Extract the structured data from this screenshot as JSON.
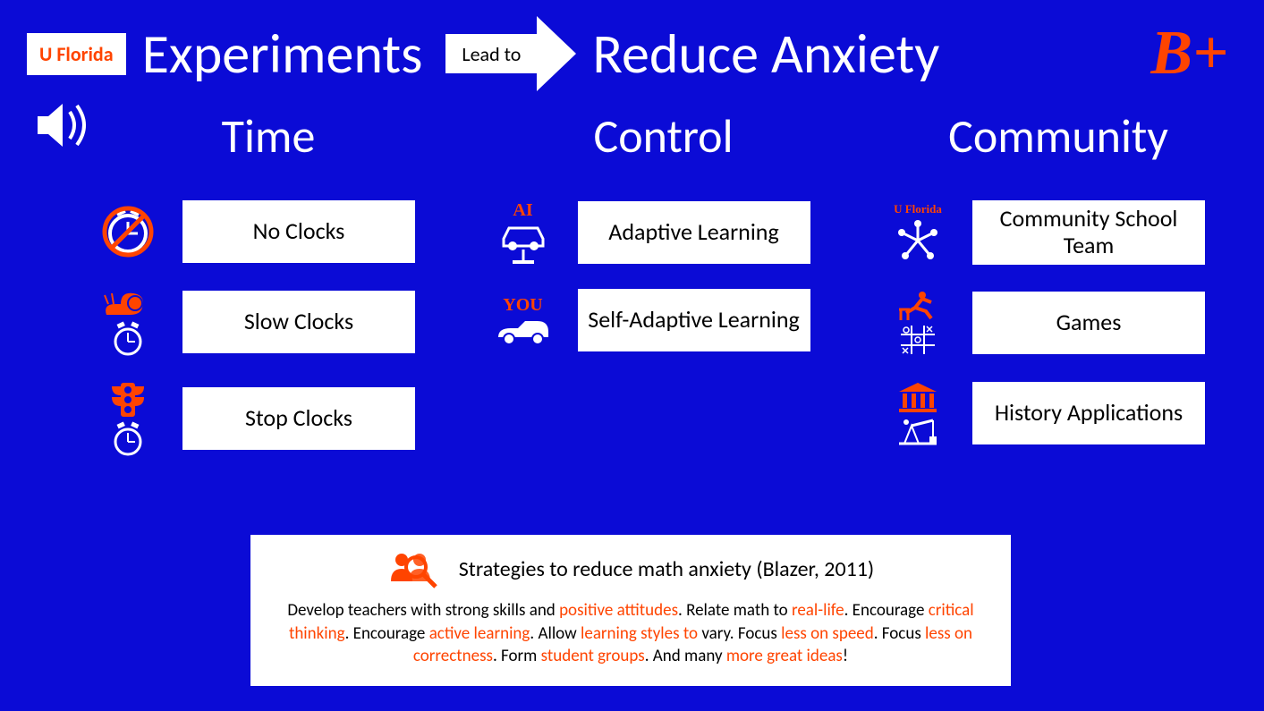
{
  "colors": {
    "background": "#0b0bd6",
    "accent": "#ff4400",
    "white": "#ffffff",
    "black": "#000000"
  },
  "header": {
    "badge": "U Florida",
    "title_left": "Experiments",
    "arrow_label": "Lead to",
    "title_right": "Reduce Anxiety",
    "grade": "B+"
  },
  "columns": {
    "time": {
      "title": "Time",
      "items": [
        {
          "label": "No Clocks"
        },
        {
          "label": "Slow Clocks"
        },
        {
          "label": "Stop Clocks"
        }
      ]
    },
    "control": {
      "title": "Control",
      "items": [
        {
          "cap": "AI",
          "label": "Adaptive Learning"
        },
        {
          "cap": "YOU",
          "label": "Self-Adaptive Learning"
        }
      ]
    },
    "community": {
      "title": "Community",
      "items": [
        {
          "cap": "U Florida",
          "label": "Community School Team"
        },
        {
          "label": "Games"
        },
        {
          "label": "History Applications"
        }
      ]
    }
  },
  "footer": {
    "title": "Strategies to reduce math anxiety (Blazer, 2011)",
    "body_parts": [
      {
        "t": "Develop teachers with strong skills and "
      },
      {
        "t": "positive attitudes",
        "hl": true
      },
      {
        "t": ". Relate math to "
      },
      {
        "t": "real-life",
        "hl": true
      },
      {
        "t": ". Encourage "
      },
      {
        "t": "critical thinking",
        "hl": true
      },
      {
        "t": ". Encourage "
      },
      {
        "t": "active learning",
        "hl": true
      },
      {
        "t": ". Allow "
      },
      {
        "t": "learning styles to",
        "hl": true
      },
      {
        "t": " vary. Focus "
      },
      {
        "t": "less on speed",
        "hl": true
      },
      {
        "t": ". Focus "
      },
      {
        "t": "less on correctness",
        "hl": true
      },
      {
        "t": ". Form "
      },
      {
        "t": "student groups",
        "hl": true
      },
      {
        "t": ". And many "
      },
      {
        "t": "more great ideas",
        "hl": true
      },
      {
        "t": "!"
      }
    ]
  }
}
